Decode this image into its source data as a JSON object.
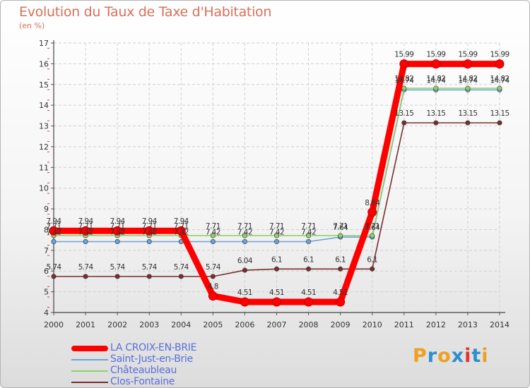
{
  "title": "Evolution du Taux de Taxe d'Habitation",
  "unit_label": "(en %)",
  "logo": {
    "letters": [
      "P",
      "r",
      "o",
      "x",
      "i",
      "t",
      "i"
    ],
    "colors": [
      "#f0a020",
      "#2d8fd0",
      "#f0a020",
      "#2d8fd0",
      "#e83030",
      "#2d8fd0",
      "#f0a020"
    ]
  },
  "chart_data": {
    "type": "line",
    "title": "Evolution du Taux de Taxe d'Habitation",
    "ylabel": "(en %)",
    "xlabel": "",
    "ylim": [
      4,
      17
    ],
    "yticks": [
      4,
      5,
      6,
      7,
      8,
      9,
      10,
      11,
      12,
      13,
      14,
      15,
      16,
      17
    ],
    "categories": [
      "2000",
      "2001",
      "2002",
      "2003",
      "2004",
      "2005",
      "2006",
      "2007",
      "2008",
      "2009",
      "2010",
      "2011",
      "2012",
      "2013",
      "2014"
    ],
    "grid": true,
    "legend_position": "bottom-left",
    "series": [
      {
        "name": "LA CROIX-EN-BRIE",
        "color": "#ff0000",
        "values": [
          7.94,
          7.94,
          7.94,
          7.94,
          7.94,
          4.8,
          4.51,
          4.51,
          4.51,
          4.51,
          8.84,
          15.99,
          15.99,
          15.99,
          15.99
        ],
        "labels": [
          "7.94",
          "7.94",
          "7.94",
          "7.94",
          "7.94",
          "4.8",
          "4.51",
          "4.51",
          "4.51",
          "4.51",
          "8.84",
          "15.99",
          "15.99",
          "15.99",
          "15.99"
        ]
      },
      {
        "name": "Saint-Just-en-Brie",
        "color": "#6ba3d6",
        "values": [
          7.42,
          7.42,
          7.42,
          7.42,
          7.42,
          7.42,
          7.42,
          7.42,
          7.42,
          7.64,
          7.64,
          14.74,
          14.74,
          14.74,
          14.74
        ],
        "labels": [
          "7.42",
          "7.42",
          "7.42",
          "7.42",
          "7.42",
          "7.42",
          "7.42",
          "7.42",
          "7.42",
          "7.64",
          "7.64",
          "14.74",
          "14.74",
          "14.74",
          "14.74"
        ]
      },
      {
        "name": "Châteaubleau",
        "color": "#8fd46a",
        "values": [
          7.71,
          7.71,
          7.71,
          7.71,
          7.71,
          7.71,
          7.71,
          7.71,
          7.71,
          7.71,
          7.71,
          14.82,
          14.82,
          14.82,
          14.82
        ],
        "labels": [
          "7.71",
          "7.71",
          "7.71",
          "7.71",
          "7.71",
          "7.71",
          "7.71",
          "7.71",
          "7.71",
          "7.71",
          "7.71",
          "14.82",
          "14.82",
          "14.82",
          "14.82"
        ]
      },
      {
        "name": "Clos-Fontaine",
        "color": "#7a2e2e",
        "values": [
          5.74,
          5.74,
          5.74,
          5.74,
          5.74,
          5.74,
          6.04,
          6.1,
          6.1,
          6.1,
          6.1,
          13.15,
          13.15,
          13.15,
          13.15
        ],
        "labels": [
          "5.74",
          "5.74",
          "5.74",
          "5.74",
          "5.74",
          "5.74",
          "6.04",
          "6.1",
          "6.1",
          "6.1",
          "6.1",
          "13.15",
          "13.15",
          "13.15",
          "13.15"
        ]
      }
    ]
  }
}
